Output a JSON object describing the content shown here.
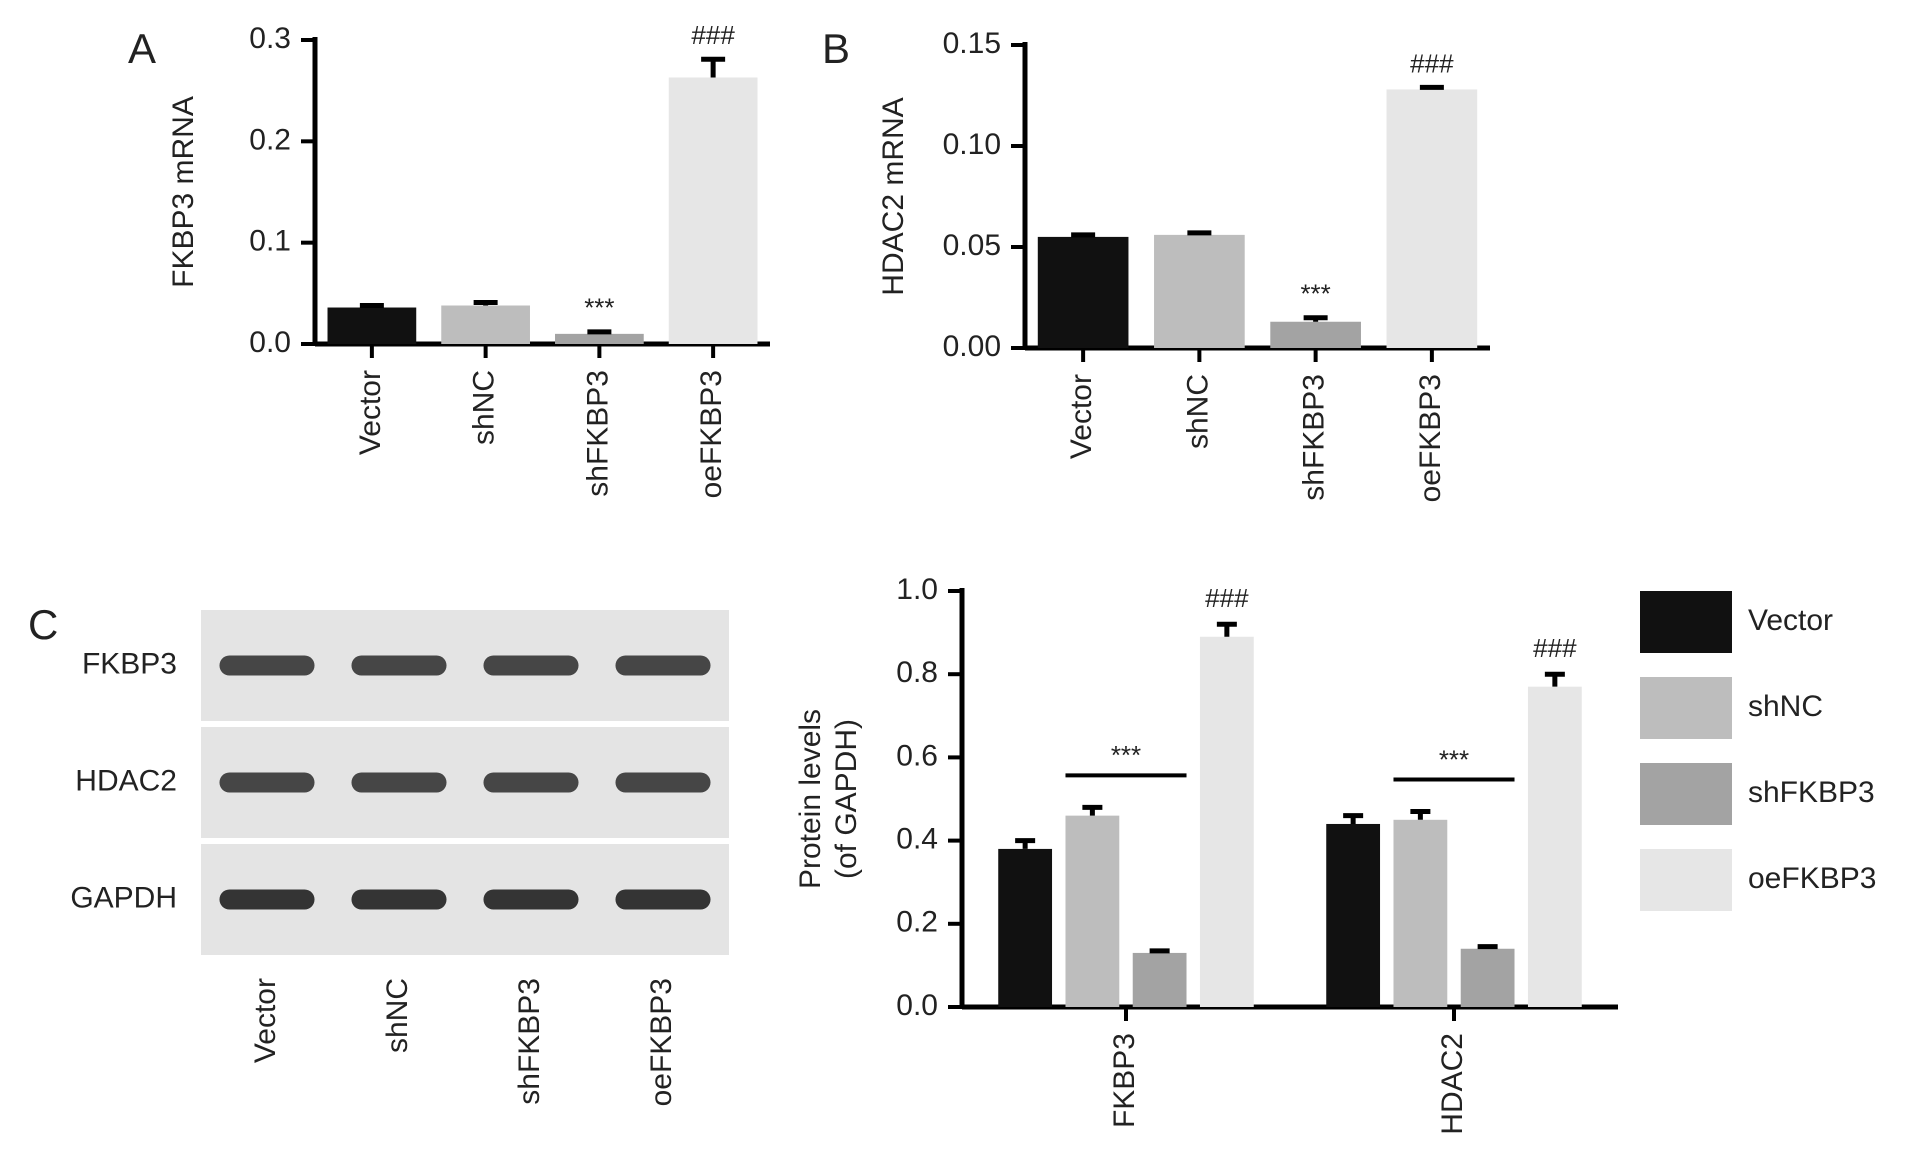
{
  "chart_data": [
    {
      "type": "bar",
      "panel": "A",
      "ylabel": "FKBP3 mRNA",
      "categories": [
        "Vector",
        "shNC",
        "shFKBP3",
        "oeFKBP3"
      ],
      "values": [
        0.036,
        0.038,
        0.01,
        0.263
      ],
      "errors": [
        0.002,
        0.003,
        0.002,
        0.018
      ],
      "colors": [
        "#111111",
        "#bdbdbd",
        "#a3a3a3",
        "#e6e6e6"
      ],
      "ylim": [
        0,
        0.3
      ],
      "yticks": [
        {
          "value": 0,
          "label": "0.0"
        },
        0.1,
        0.2,
        0.3
      ],
      "annotations": [
        {
          "category": 2,
          "text": "***"
        },
        {
          "category": 3,
          "text": "###"
        }
      ]
    },
    {
      "type": "bar",
      "panel": "B",
      "ylabel": "HDAC2 mRNA",
      "categories": [
        "Vector",
        "shNC",
        "shFKBP3",
        "oeFKBP3"
      ],
      "values": [
        0.055,
        0.056,
        0.013,
        0.128
      ],
      "errors": [
        0.001,
        0.001,
        0.002,
        0.001
      ],
      "colors": [
        "#111111",
        "#bdbdbd",
        "#a3a3a3",
        "#e6e6e6"
      ],
      "ylim": [
        0,
        0.15
      ],
      "yticks": [
        {
          "value": 0,
          "label": "0.00"
        },
        0.05,
        {
          "value": 0.1,
          "label": "0.10"
        },
        0.15
      ],
      "annotations": [
        {
          "category": 2,
          "text": "***"
        },
        {
          "category": 3,
          "text": "###"
        }
      ]
    },
    {
      "type": "blot",
      "panel": "C",
      "rows": [
        "FKBP3",
        "HDAC2",
        "GAPDH"
      ],
      "lanes": [
        "Vector",
        "shNC",
        "shFKBP3",
        "oeFKBP3"
      ]
    },
    {
      "type": "grouped_bar",
      "ylabel": [
        "Protein levels",
        "(of GAPDH)"
      ],
      "categories": [
        "FKBP3",
        "HDAC2"
      ],
      "series": [
        {
          "name": "Vector",
          "color": "#111111",
          "values": [
            0.38,
            0.44
          ],
          "errors": [
            0.02,
            0.02
          ]
        },
        {
          "name": "shNC",
          "color": "#bdbdbd",
          "values": [
            0.46,
            0.45
          ],
          "errors": [
            0.02,
            0.02
          ]
        },
        {
          "name": "shFKBP3",
          "color": "#a3a3a3",
          "values": [
            0.13,
            0.14
          ],
          "errors": [
            0.005,
            0.005
          ]
        },
        {
          "name": "oeFKBP3",
          "color": "#e6e6e6",
          "values": [
            0.89,
            0.77
          ],
          "errors": [
            0.03,
            0.03
          ]
        }
      ],
      "ylim": [
        0,
        1
      ],
      "yticks": [
        {
          "value": 0,
          "label": "0.0"
        },
        0.2,
        0.4,
        0.6,
        0.8,
        {
          "value": 1,
          "label": "1.0"
        }
      ],
      "legend": "right",
      "annotations": [
        {
          "category": 0,
          "series": 2,
          "text": "***"
        },
        {
          "category": 0,
          "series": 3,
          "text": "###"
        },
        {
          "category": 1,
          "series": 2,
          "text": "***"
        },
        {
          "category": 1,
          "series": 3,
          "text": "###"
        }
      ]
    }
  ]
}
